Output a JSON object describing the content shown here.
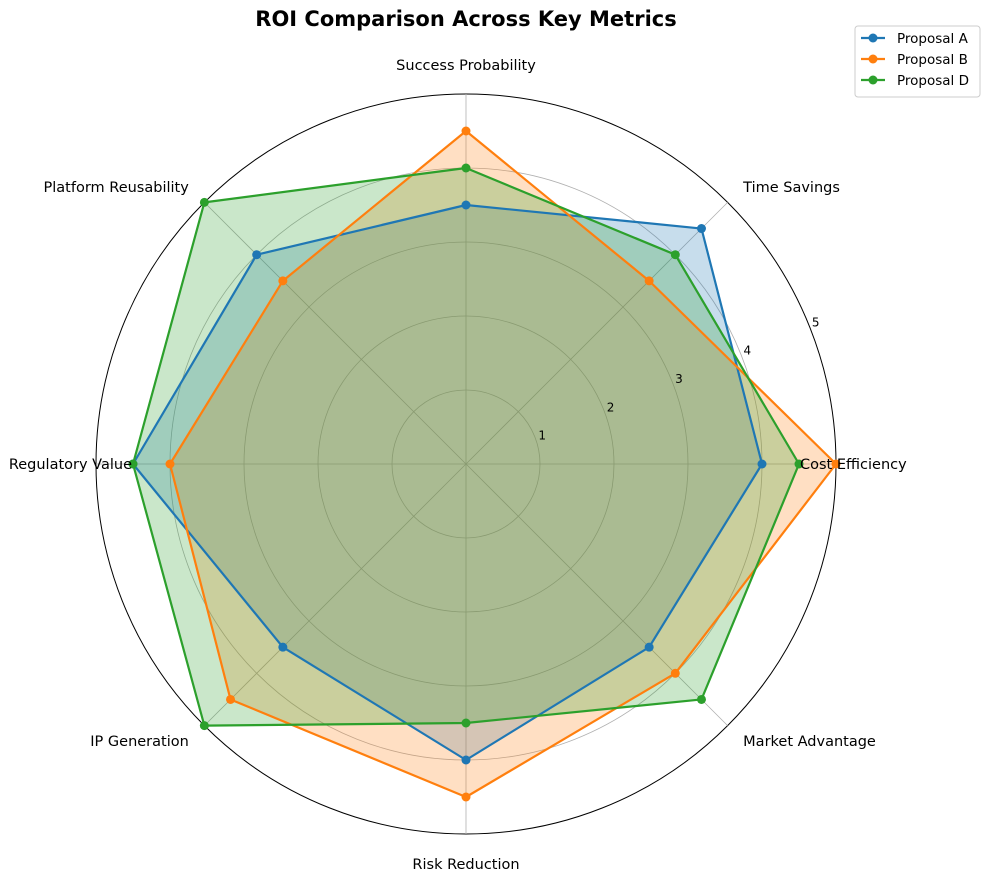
{
  "chart_data": {
    "type": "radar",
    "title": "ROI Comparison Across Key Metrics",
    "axes": [
      "Cost Efficiency",
      "Time Savings",
      "Success Probability",
      "Platform Reusability",
      "Regulatory Value",
      "IP Generation",
      "Risk Reduction",
      "Market Advantage"
    ],
    "rlim": [
      0,
      5
    ],
    "r_ticks": [
      1,
      2,
      3,
      4,
      5
    ],
    "grid": true,
    "legend_position": "top-right",
    "series": [
      {
        "name": "Proposal A",
        "color": "#1f77b4",
        "values": [
          4.0,
          4.5,
          3.5,
          4.0,
          4.5,
          3.5,
          4.0,
          3.5
        ]
      },
      {
        "name": "Proposal B",
        "color": "#ff7f0e",
        "values": [
          5.0,
          3.5,
          4.5,
          3.5,
          4.0,
          4.5,
          4.5,
          4.0
        ]
      },
      {
        "name": "Proposal D",
        "color": "#2ca02c",
        "values": [
          4.5,
          4.0,
          4.0,
          5.0,
          4.5,
          5.0,
          3.5,
          4.5
        ]
      }
    ]
  }
}
